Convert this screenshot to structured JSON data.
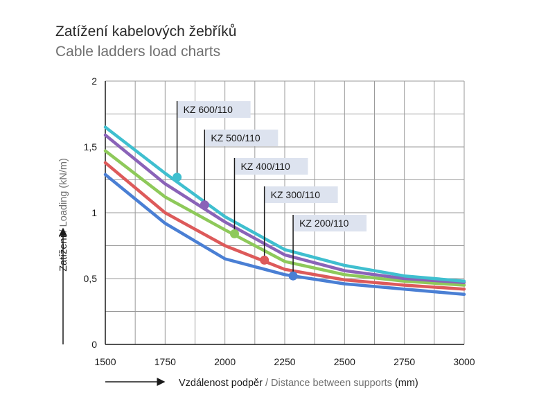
{
  "title": "Zatížení kabelových žebříků",
  "subtitle": "Cable ladders load charts",
  "chart_data": {
    "type": "line",
    "title": "Zatížení kabelových žebříků",
    "subtitle": "Cable ladders load charts",
    "ylabel_cz": "Zatížení",
    "ylabel_sep": " / ",
    "ylabel_en": "Loading (kN/m)",
    "xlabel_cz": "Vzdálenost podpěr",
    "xlabel_sep": " / ",
    "xlabel_en": "Distance between supports",
    "xlabel_unit": " (mm)",
    "xlim": [
      1500,
      3000
    ],
    "ylim": [
      0,
      2
    ],
    "x_ticks": [
      "1500",
      "1750",
      "2000",
      "2250",
      "2500",
      "2750",
      "3000"
    ],
    "y_ticks": [
      "0",
      "0,5",
      "1",
      "1,5",
      "2"
    ],
    "grid": true,
    "x": [
      1500,
      1750,
      2000,
      2250,
      2500,
      2750,
      3000
    ],
    "series": [
      {
        "name": "KZ 600/110",
        "color": "#3fbfcf",
        "values": [
          1.65,
          1.3,
          0.97,
          0.72,
          0.6,
          0.52,
          0.48
        ],
        "marker_x": 1800,
        "marker_y": 1.27
      },
      {
        "name": "KZ 500/110",
        "color": "#8a63b8",
        "values": [
          1.59,
          1.22,
          0.93,
          0.68,
          0.56,
          0.5,
          0.47
        ],
        "marker_x": 1915,
        "marker_y": 1.06
      },
      {
        "name": "KZ 400/110",
        "color": "#8ec95a",
        "values": [
          1.47,
          1.12,
          0.87,
          0.63,
          0.53,
          0.48,
          0.45
        ],
        "marker_x": 2040,
        "marker_y": 0.84
      },
      {
        "name": "KZ 300/110",
        "color": "#dd5a5a",
        "values": [
          1.38,
          1.0,
          0.75,
          0.57,
          0.49,
          0.45,
          0.42
        ],
        "marker_x": 2165,
        "marker_y": 0.64
      },
      {
        "name": "KZ 200/110",
        "color": "#4a7fd4",
        "values": [
          1.29,
          0.92,
          0.65,
          0.53,
          0.46,
          0.42,
          0.38
        ],
        "marker_x": 2285,
        "marker_y": 0.52
      }
    ]
  }
}
